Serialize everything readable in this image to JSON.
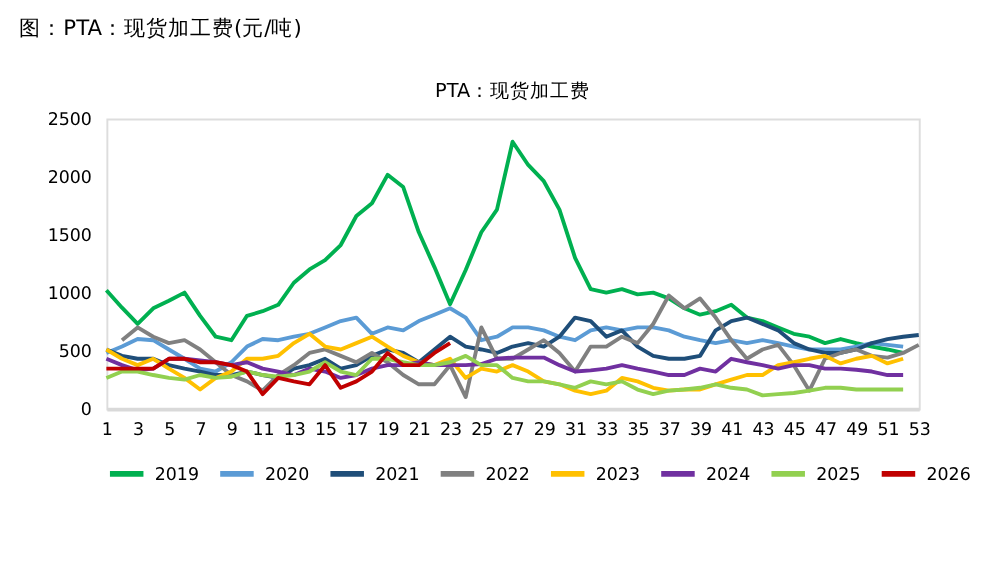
{
  "chart_data": {
    "type": "line",
    "title": "图：PTA：现货加工费(元/吨)",
    "subtitle": "PTA：现货加工费",
    "x": [
      1,
      2,
      3,
      4,
      5,
      6,
      7,
      8,
      9,
      10,
      11,
      12,
      13,
      14,
      15,
      16,
      17,
      18,
      19,
      20,
      21,
      22,
      23,
      24,
      25,
      26,
      27,
      28,
      29,
      30,
      31,
      32,
      33,
      34,
      35,
      36,
      37,
      38,
      39,
      40,
      41,
      42,
      43,
      44,
      45,
      46,
      47,
      48,
      49,
      50,
      51,
      52,
      53
    ],
    "xlim": [
      1,
      53
    ],
    "xticks": [
      1,
      3,
      5,
      7,
      9,
      11,
      13,
      15,
      17,
      19,
      21,
      23,
      25,
      27,
      29,
      31,
      33,
      35,
      37,
      39,
      41,
      43,
      45,
      47,
      49,
      51,
      53
    ],
    "ylim": [
      0,
      2500
    ],
    "yticks": [
      0,
      500,
      1000,
      1500,
      2000,
      2500
    ],
    "grid": false,
    "legend": "bottom",
    "line_style": "solid",
    "series": [
      {
        "name": "2019",
        "color": "#00b050",
        "values": [
          1020,
          870,
          730,
          865,
          930,
          1000,
          800,
          620,
          590,
          800,
          840,
          895,
          1085,
          1200,
          1280,
          1410,
          1660,
          1770,
          2015,
          1910,
          1520,
          1220,
          900,
          1195,
          1520,
          1715,
          2300,
          2100,
          1960,
          1715,
          1300,
          1030,
          1000,
          1030,
          985,
          1000,
          950,
          865,
          810,
          840,
          895,
          785,
          755,
          700,
          645,
          620,
          565,
          600,
          565,
          535,
          510,
          480,
          null
        ]
      },
      {
        "name": "2020",
        "color": "#5b9bd5",
        "values": [
          480,
          535,
          600,
          590,
          510,
          430,
          345,
          320,
          400,
          535,
          600,
          590,
          620,
          645,
          700,
          755,
          785,
          645,
          700,
          675,
          755,
          810,
          865,
          785,
          590,
          620,
          700,
          700,
          675,
          620,
          590,
          675,
          700,
          675,
          700,
          700,
          675,
          620,
          590,
          565,
          590,
          565,
          590,
          565,
          535,
          510,
          510,
          510,
          535,
          565,
          550,
          535,
          null
        ]
      },
      {
        "name": "2021",
        "color": "#1f4e79",
        "values": [
          510,
          455,
          430,
          430,
          375,
          345,
          320,
          290,
          290,
          320,
          290,
          265,
          345,
          375,
          430,
          345,
          375,
          455,
          510,
          480,
          400,
          510,
          620,
          535,
          510,
          480,
          535,
          565,
          535,
          620,
          785,
          755,
          620,
          675,
          535,
          455,
          430,
          430,
          455,
          675,
          755,
          785,
          730,
          675,
          565,
          510,
          480,
          480,
          510,
          565,
          600,
          620,
          635
        ]
      },
      {
        "name": "2022",
        "color": "#808080",
        "values": [
          null,
          590,
          700,
          620,
          565,
          590,
          510,
          400,
          290,
          235,
          155,
          290,
          375,
          480,
          510,
          455,
          400,
          480,
          400,
          290,
          210,
          210,
          375,
          100,
          700,
          430,
          430,
          510,
          590,
          480,
          320,
          535,
          535,
          620,
          565,
          730,
          975,
          865,
          950,
          785,
          590,
          430,
          510,
          550,
          375,
          155,
          430,
          480,
          510,
          455,
          440,
          480,
          550
        ]
      },
      {
        "name": "2023",
        "color": "#ffc000",
        "values": [
          510,
          430,
          375,
          430,
          345,
          265,
          165,
          265,
          320,
          430,
          430,
          455,
          565,
          645,
          535,
          510,
          565,
          620,
          535,
          455,
          400,
          375,
          430,
          265,
          345,
          320,
          375,
          320,
          235,
          210,
          155,
          125,
          155,
          265,
          235,
          180,
          155,
          165,
          165,
          210,
          250,
          290,
          290,
          375,
          400,
          430,
          455,
          390,
          430,
          455,
          390,
          430,
          null
        ]
      },
      {
        "name": "2024",
        "color": "#7030a0",
        "values": [
          430,
          375,
          330,
          345,
          430,
          430,
          415,
          400,
          375,
          400,
          345,
          320,
          290,
          345,
          320,
          265,
          290,
          345,
          375,
          375,
          400,
          375,
          375,
          375,
          385,
          430,
          440,
          440,
          440,
          375,
          320,
          330,
          345,
          375,
          345,
          320,
          290,
          290,
          345,
          320,
          430,
          400,
          375,
          345,
          375,
          375,
          345,
          345,
          335,
          320,
          290,
          290,
          null
        ]
      },
      {
        "name": "2025",
        "color": "#92d050",
        "values": [
          265,
          320,
          320,
          290,
          265,
          250,
          290,
          265,
          275,
          320,
          290,
          275,
          290,
          320,
          400,
          320,
          290,
          430,
          430,
          400,
          375,
          375,
          400,
          455,
          375,
          375,
          265,
          235,
          235,
          210,
          180,
          235,
          210,
          235,
          165,
          125,
          155,
          165,
          180,
          210,
          180,
          165,
          115,
          125,
          135,
          155,
          180,
          180,
          165,
          165,
          165,
          165,
          null
        ]
      },
      {
        "name": "2026",
        "color": "#c00000",
        "values": [
          345,
          345,
          345,
          345,
          430,
          430,
          400,
          400,
          375,
          320,
          125,
          265,
          235,
          210,
          375,
          180,
          235,
          320,
          480,
          375,
          375,
          480,
          565,
          null,
          null,
          null,
          null,
          null,
          null,
          null,
          null,
          null,
          null,
          null,
          null,
          null,
          null,
          null,
          null,
          null,
          null,
          null,
          null,
          null,
          null,
          null,
          null,
          null,
          null,
          null,
          null,
          null,
          null
        ]
      }
    ]
  }
}
